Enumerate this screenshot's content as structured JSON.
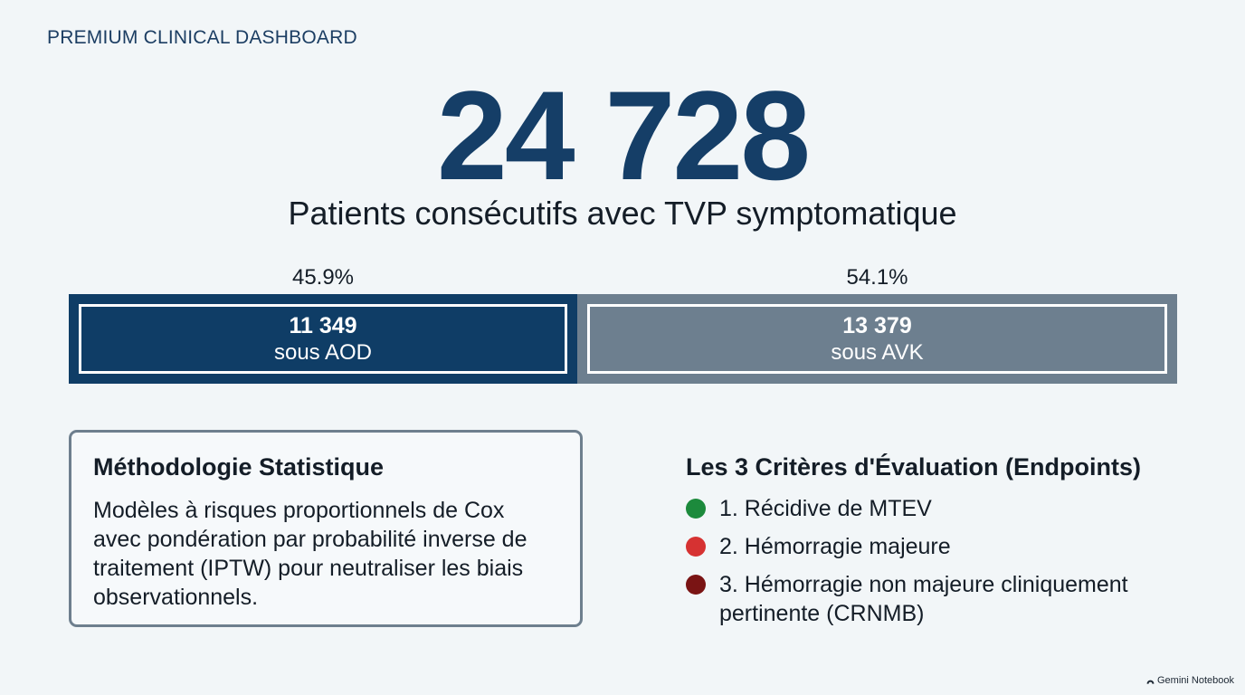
{
  "header": {
    "dashboard_label": "PREMIUM CLINICAL DASHBOARD"
  },
  "hero": {
    "total": "24 728",
    "subtitle": "Patients consécutifs avec TVP symptomatique"
  },
  "split": {
    "segments": [
      {
        "percent_label": "45.9%",
        "fraction": 0.459,
        "count": "11 349",
        "label": "sous AOD",
        "color": "#0f3d66"
      },
      {
        "percent_label": "54.1%",
        "fraction": 0.541,
        "count": "13 379",
        "label": "sous AVK",
        "color": "#6d7f8f"
      }
    ]
  },
  "methodology": {
    "title": "Méthodologie Statistique",
    "text": "Modèles à risques proportionnels de Cox avec pondération par probabilité inverse de traitement (IPTW) pour neutraliser les biais observationnels."
  },
  "endpoints": {
    "title": "Les 3 Critères d'Évaluation (Endpoints)",
    "items": [
      {
        "text": "1. Récidive de MTEV",
        "color": "#1c8a3c"
      },
      {
        "text": "2. Hémorragie majeure",
        "color": "#d63232"
      },
      {
        "text": "3. Hémorragie non majeure cliniquement pertinente (CRNMB)",
        "color": "#7a1414"
      }
    ]
  },
  "watermark": {
    "text": "Gemini Notebook",
    "icon": "notebook-logo-icon"
  }
}
